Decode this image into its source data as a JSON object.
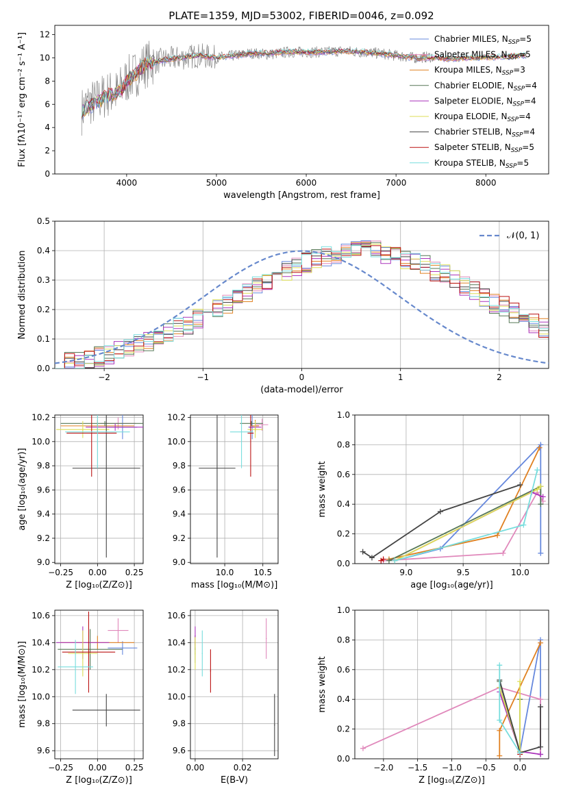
{
  "figure": {
    "title": "PLATE=1359, MJD=53002, FIBERID=0046, z=0.092"
  },
  "models": [
    {
      "name": "Chabrier MILES",
      "nssp": "5",
      "color": "#6688dd"
    },
    {
      "name": "Salpeter MILES",
      "nssp": "5",
      "color": "#e088bb"
    },
    {
      "name": "Kroupa MILES",
      "nssp": "3",
      "color": "#e08020"
    },
    {
      "name": "Chabrier ELODIE",
      "nssp": "4",
      "color": "#557755"
    },
    {
      "name": "Salpeter ELODIE",
      "nssp": "4",
      "color": "#aa33bb"
    },
    {
      "name": "Kroupa ELODIE",
      "nssp": "4",
      "color": "#dddd55"
    },
    {
      "name": "Chabrier STELIB",
      "nssp": "4",
      "color": "#444444"
    },
    {
      "name": "Salpeter STELIB",
      "nssp": "5",
      "color": "#bb1111"
    },
    {
      "name": "Kroupa STELIB",
      "nssp": "5",
      "color": "#77dddd"
    }
  ],
  "chart_data": [
    {
      "id": "spectrum",
      "type": "line",
      "xlabel": "wavelength [Angstrom, rest frame]",
      "ylabel": "Flux [fλ10⁻¹⁷ erg cm⁻² s⁻¹ A⁻¹]",
      "xlim": [
        3200,
        8700
      ],
      "ylim": [
        0,
        12.8
      ],
      "xticks": [
        4000,
        5000,
        6000,
        7000,
        8000
      ],
      "yticks": [
        0,
        2,
        4,
        6,
        8,
        10,
        12
      ],
      "legend": "right",
      "observed": {
        "x": [
          3500,
          3550,
          3600,
          3650,
          3700,
          3800,
          3900,
          4000,
          4100,
          4200,
          4300,
          4400,
          4500,
          4600,
          4800,
          5000,
          5200,
          5400,
          5600,
          5800,
          6000,
          6200,
          6400,
          6600,
          6800,
          7000,
          7200,
          7400
        ],
        "y": [
          5.4,
          5.9,
          6.2,
          6.1,
          6.5,
          6.9,
          7.0,
          8.1,
          8.6,
          9.4,
          9.6,
          9.8,
          9.9,
          10.0,
          10.2,
          10.0,
          10.2,
          10.4,
          10.3,
          10.5,
          10.5,
          10.5,
          10.6,
          10.5,
          10.4,
          10.2,
          10.0,
          10.1
        ]
      },
      "model_shape": {
        "x": [
          3500,
          3650,
          3800,
          3950,
          4000,
          4100,
          4200,
          4400,
          4600,
          4800,
          5000,
          5200,
          5400,
          5600,
          5800,
          6000,
          6200,
          6400,
          6600,
          6800,
          7000,
          7200,
          7400,
          7600,
          7800,
          8000,
          8200,
          8400
        ],
        "y": [
          5.4,
          6.1,
          6.8,
          7.2,
          8.0,
          8.6,
          9.4,
          9.8,
          10.0,
          10.2,
          10.0,
          10.2,
          10.4,
          10.4,
          10.5,
          10.5,
          10.5,
          10.6,
          10.5,
          10.4,
          10.2,
          10.0,
          10.0,
          9.9,
          10.0,
          10.0,
          10.1,
          10.2
        ]
      }
    },
    {
      "id": "residuals",
      "type": "histogram",
      "xlabel": "(data-model)/error",
      "ylabel": "Normed distribution",
      "xlim": [
        -2.5,
        2.5
      ],
      "ylim": [
        0,
        0.5
      ],
      "xticks": [
        -2,
        -1,
        0,
        1,
        2
      ],
      "xticklabels": [
        "−2",
        "−1",
        "0",
        "1",
        "2"
      ],
      "yticks": [
        0,
        0.1,
        0.2,
        0.3,
        0.4,
        0.5
      ],
      "legend": {
        "label": "𝒩(0, 1)",
        "color": "#6688cc"
      },
      "bin_width": 0.1,
      "bin_start": -2.5,
      "hist": [
        0.02,
        0.02,
        0.03,
        0.03,
        0.04,
        0.05,
        0.06,
        0.07,
        0.08,
        0.09,
        0.1,
        0.12,
        0.14,
        0.15,
        0.17,
        0.19,
        0.21,
        0.22,
        0.24,
        0.26,
        0.28,
        0.3,
        0.32,
        0.33,
        0.35,
        0.36,
        0.37,
        0.38,
        0.39,
        0.4,
        0.4,
        0.4,
        0.4,
        0.39,
        0.38,
        0.37,
        0.36,
        0.35,
        0.33,
        0.32,
        0.3,
        0.28,
        0.26,
        0.24,
        0.22,
        0.21,
        0.19,
        0.17,
        0.15,
        0.14
      ]
    },
    {
      "id": "age-vs-Z",
      "type": "errorbar",
      "xlabel": "Z [log₁₀(Z/Z⊙)]",
      "ylabel": "age  [log₁₀(age/yr)]",
      "xlim": [
        -0.29,
        0.31
      ],
      "ylim": [
        8.99,
        10.22
      ],
      "xticks": [
        -0.25,
        0,
        0.25
      ],
      "xticklabels": [
        "−0.25",
        "0.00",
        "0.25"
      ],
      "yticks": [
        9.0,
        9.2,
        9.4,
        9.6,
        9.8,
        10.0,
        10.2
      ],
      "points": [
        {
          "m": 0,
          "x": 0.17,
          "xe": 0.1,
          "y": 10.12,
          "ye": 0.1
        },
        {
          "m": 1,
          "x": 0.14,
          "xe": 0.12,
          "y": 10.15,
          "ye": 0.05
        },
        {
          "m": 2,
          "x": 0.0,
          "xe": 0.25,
          "y": 10.13,
          "ye": 0.05
        },
        {
          "m": 3,
          "x": 0.05,
          "xe": 0.3,
          "y": 10.15,
          "ye": 0.02
        },
        {
          "m": 4,
          "x": 0.12,
          "xe": 0.2,
          "y": 10.12,
          "ye": 0.03
        },
        {
          "m": 5,
          "x": -0.1,
          "xe": 0.18,
          "y": 10.1,
          "ye": 0.07
        },
        {
          "m": 6,
          "x": 0.06,
          "xe": 0.23,
          "y": 9.78,
          "ye": 0.74
        },
        {
          "m": 7,
          "x": -0.04,
          "xe": 0.17,
          "y": 10.07,
          "ye": 0.36
        },
        {
          "m": 8,
          "x": 0.0,
          "xe": 0.22,
          "y": 10.08,
          "ye": 0.3
        }
      ]
    },
    {
      "id": "age-vs-mass",
      "type": "errorbar",
      "xlabel": "mass [log₁₀(M/M⊙)]",
      "ylabel": "",
      "xlim": [
        9.55,
        10.7
      ],
      "ylim": [
        8.99,
        10.22
      ],
      "xticks": [
        10.0,
        10.5
      ],
      "xticklabels": [
        "10.0",
        "10.5"
      ],
      "yticks": [
        9.0,
        9.2,
        9.4,
        9.6,
        9.8,
        10.0,
        10.2
      ],
      "points": [
        {
          "m": 0,
          "x": 10.36,
          "xe": 0.05,
          "y": 10.12,
          "ye": 0.1
        },
        {
          "m": 1,
          "x": 10.49,
          "xe": 0.08,
          "y": 10.14,
          "ye": 0.05
        },
        {
          "m": 2,
          "x": 10.4,
          "xe": 0.05,
          "y": 10.13,
          "ye": 0.05
        },
        {
          "m": 3,
          "x": 10.35,
          "xe": 0.15,
          "y": 10.15,
          "ye": 0.02
        },
        {
          "m": 4,
          "x": 10.4,
          "xe": 0.08,
          "y": 10.12,
          "ye": 0.03
        },
        {
          "m": 5,
          "x": 10.4,
          "xe": 0.1,
          "y": 10.1,
          "ye": 0.07
        },
        {
          "m": 6,
          "x": 9.9,
          "xe": 0.24,
          "y": 9.78,
          "ye": 0.74
        },
        {
          "m": 7,
          "x": 10.34,
          "xe": 0.04,
          "y": 10.07,
          "ye": 0.36
        },
        {
          "m": 8,
          "x": 10.22,
          "xe": 0.15,
          "y": 10.08,
          "ye": 0.3
        }
      ]
    },
    {
      "id": "weight-vs-age",
      "type": "line",
      "xlabel": "age  [log₁₀(age/yr)]",
      "ylabel": "mass weight",
      "xlim": [
        8.55,
        10.25
      ],
      "ylim": [
        0,
        1.0
      ],
      "xticks": [
        9.0,
        9.5,
        10.0
      ],
      "xticklabels": [
        "9.0",
        "9.5",
        "10.0"
      ],
      "yticks": [
        0,
        0.2,
        0.4,
        0.6,
        0.8,
        1.0
      ],
      "series": [
        {
          "m": 0,
          "x": [
            8.9,
            9.3,
            10.18,
            10.18
          ],
          "y": [
            0.02,
            0.1,
            0.8,
            0.07
          ]
        },
        {
          "m": 1,
          "x": [
            8.8,
            9.85,
            10.15,
            10.2
          ],
          "y": [
            0.02,
            0.07,
            0.48,
            0.42
          ]
        },
        {
          "m": 2,
          "x": [
            8.85,
            9.8,
            10.17
          ],
          "y": [
            0.03,
            0.19,
            0.78
          ]
        },
        {
          "m": 3,
          "x": [
            8.85,
            10.18,
            10.18
          ],
          "y": [
            0.02,
            0.52,
            0.4
          ]
        },
        {
          "m": 4,
          "x": [
            8.9,
            10.1,
            10.2
          ],
          "y": [
            0.02,
            0.48,
            0.45
          ]
        },
        {
          "m": 5,
          "x": [
            8.9,
            10.15,
            10.18
          ],
          "y": [
            0.02,
            0.5,
            0.52
          ]
        },
        {
          "m": 6,
          "x": [
            8.62,
            8.7,
            9.3,
            10.0
          ],
          "y": [
            0.08,
            0.04,
            0.35,
            0.53
          ]
        },
        {
          "m": 7,
          "x": [
            8.78,
            8.8
          ],
          "y": [
            0.02,
            0.03
          ]
        },
        {
          "m": 8,
          "x": [
            8.9,
            10.03,
            10.15
          ],
          "y": [
            0.02,
            0.26,
            0.63
          ]
        }
      ]
    },
    {
      "id": "mass-vs-Z",
      "type": "errorbar",
      "xlabel": "Z [log₁₀(Z/Z⊙)]",
      "ylabel": "mass [log₁₀(M/M⊙)]",
      "xlim": [
        -0.29,
        0.31
      ],
      "ylim": [
        9.54,
        10.64
      ],
      "xticks": [
        -0.25,
        0,
        0.25
      ],
      "xticklabels": [
        "−0.25",
        "0.00",
        "0.25"
      ],
      "yticks": [
        9.6,
        9.8,
        10.0,
        10.2,
        10.4,
        10.6
      ],
      "points": [
        {
          "m": 0,
          "x": 0.17,
          "xe": 0.1,
          "y": 10.36,
          "ye": 0.05
        },
        {
          "m": 1,
          "x": 0.14,
          "xe": 0.07,
          "y": 10.49,
          "ye": 0.09
        },
        {
          "m": 2,
          "x": 0.0,
          "xe": 0.25,
          "y": 10.4,
          "ye": 0.05
        },
        {
          "m": 3,
          "x": -0.05,
          "xe": 0.22,
          "y": 10.35,
          "ye": 0.15
        },
        {
          "m": 4,
          "x": -0.1,
          "xe": 0.18,
          "y": 10.4,
          "ye": 0.12
        },
        {
          "m": 5,
          "x": -0.1,
          "xe": 0.1,
          "y": 10.32,
          "ye": 0.17
        },
        {
          "m": 6,
          "x": 0.06,
          "xe": 0.23,
          "y": 9.9,
          "ye": 0.12
        },
        {
          "m": 7,
          "x": -0.06,
          "xe": 0.18,
          "y": 10.33,
          "ye": 0.3
        },
        {
          "m": 8,
          "x": -0.15,
          "xe": 0.12,
          "y": 10.22,
          "ye": 0.2
        }
      ]
    },
    {
      "id": "mass-vs-EBV",
      "type": "errorbar",
      "xlabel": "E(B-V)",
      "ylabel": "",
      "xlim": [
        -0.002,
        0.035
      ],
      "ylim": [
        9.54,
        10.64
      ],
      "xticks": [
        0.0,
        0.02
      ],
      "xticklabels": [
        "0.00",
        "0.02"
      ],
      "yticks": [
        9.6,
        9.8,
        10.0,
        10.2,
        10.4,
        10.6
      ],
      "points": [
        {
          "m": 0,
          "x": 0.0,
          "xe": 0.0002,
          "y": 10.36,
          "ye": 0.05
        },
        {
          "m": 1,
          "x": 0.03,
          "xe": 0.0002,
          "y": 10.43,
          "ye": 0.15
        },
        {
          "m": 2,
          "x": 0.0,
          "xe": 0.0002,
          "y": 10.4,
          "ye": 0.05
        },
        {
          "m": 3,
          "x": 0.0,
          "xe": 0.0002,
          "y": 10.35,
          "ye": 0.1
        },
        {
          "m": 4,
          "x": 0.0,
          "xe": 0.0002,
          "y": 10.45,
          "ye": 0.07
        },
        {
          "m": 5,
          "x": 0.0,
          "xe": 0.0002,
          "y": 10.32,
          "ye": 0.12
        },
        {
          "m": 6,
          "x": 0.0335,
          "xe": 0.0002,
          "y": 9.79,
          "ye": 0.23
        },
        {
          "m": 7,
          "x": 0.0065,
          "xe": 0.0002,
          "y": 10.19,
          "ye": 0.16
        },
        {
          "m": 8,
          "x": 0.003,
          "xe": 0.0002,
          "y": 10.32,
          "ye": 0.17
        }
      ]
    },
    {
      "id": "weight-vs-Z",
      "type": "line",
      "xlabel": "Z [log₁₀(Z/Z⊙)]",
      "ylabel": "mass weight",
      "xlim": [
        -2.42,
        0.42
      ],
      "ylim": [
        0,
        1.0
      ],
      "xticks": [
        -2.0,
        -1.5,
        -1.0,
        -0.5,
        0.0
      ],
      "xticklabels": [
        "−2.0",
        "−1.5",
        "−1.0",
        "−0.5",
        "0.0"
      ],
      "yticks": [
        0,
        0.2,
        0.4,
        0.6,
        0.8,
        1.0
      ],
      "series": [
        {
          "m": 0,
          "x": [
            0.0,
            0.3,
            0.3
          ],
          "y": [
            0.05,
            0.8,
            0.03
          ]
        },
        {
          "m": 1,
          "x": [
            -2.3,
            -0.3,
            0.3,
            0.3
          ],
          "y": [
            0.07,
            0.48,
            0.4,
            0.03
          ]
        },
        {
          "m": 2,
          "x": [
            -0.3,
            -0.3,
            0.3
          ],
          "y": [
            0.02,
            0.19,
            0.78
          ]
        },
        {
          "m": 3,
          "x": [
            -0.3,
            0.0,
            0.0
          ],
          "y": [
            0.52,
            0.05,
            0.4
          ]
        },
        {
          "m": 4,
          "x": [
            -0.3,
            0.0,
            0.3
          ],
          "y": [
            0.45,
            0.05,
            0.03
          ]
        },
        {
          "m": 5,
          "x": [
            0.0,
            0.0,
            -0.3
          ],
          "y": [
            0.52,
            0.05,
            0.48
          ]
        },
        {
          "m": 6,
          "x": [
            -0.3,
            0.0,
            0.3,
            0.3
          ],
          "y": [
            0.53,
            0.04,
            0.08,
            0.35
          ]
        },
        {
          "m": 7,
          "x": [
            0.0,
            0.0
          ],
          "y": [
            0.03,
            0.04
          ]
        },
        {
          "m": 8,
          "x": [
            -0.3,
            -0.3,
            0.0
          ],
          "y": [
            0.63,
            0.26,
            0.04
          ]
        }
      ]
    }
  ]
}
